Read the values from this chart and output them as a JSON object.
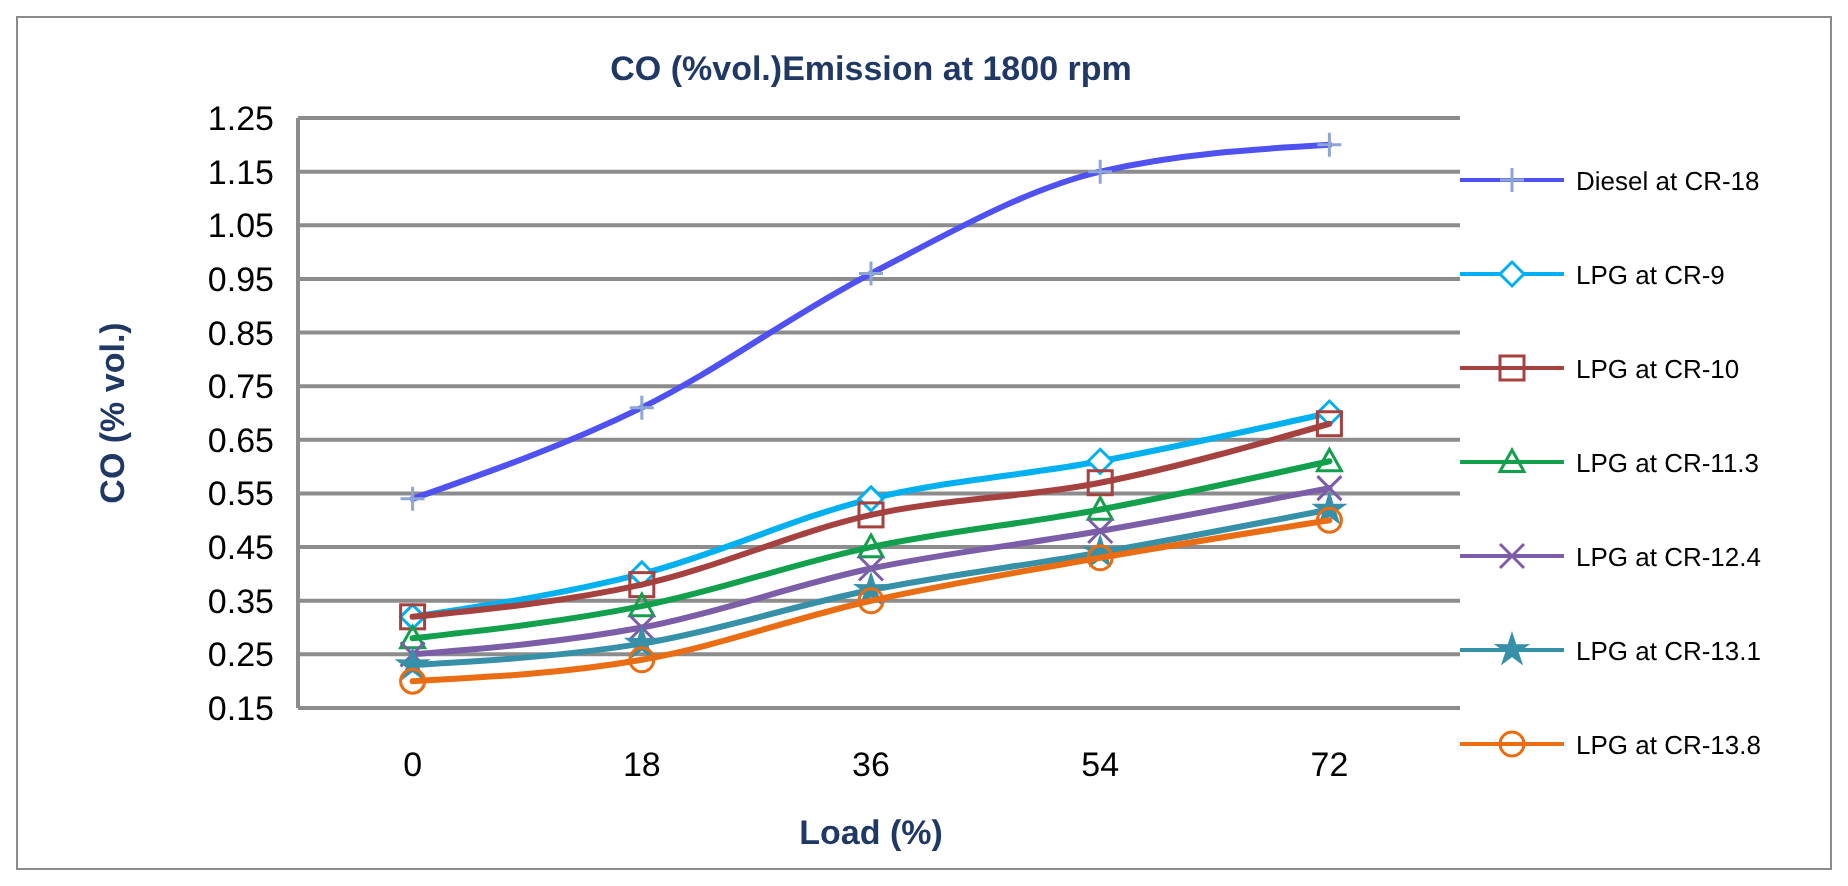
{
  "chart_data": {
    "type": "line",
    "title": "CO (%vol.)Emission  at  1800 rpm",
    "xlabel": "Load (%)",
    "ylabel": "CO (% vol.)",
    "categories": [
      "0",
      "18",
      "36",
      "54",
      "72"
    ],
    "ylim": [
      0.15,
      1.25
    ],
    "yticks": [
      0.15,
      0.25,
      0.35,
      0.45,
      0.55,
      0.65,
      0.75,
      0.85,
      0.95,
      1.05,
      1.15,
      1.25
    ],
    "grid": "y",
    "legend": "right",
    "series": [
      {
        "name": "Diesel at CR-18",
        "color": "#4f52f0",
        "marker": "plus",
        "values": [
          0.54,
          0.71,
          0.96,
          1.15,
          1.2
        ]
      },
      {
        "name": "LPG at CR-9",
        "color": "#00b0f0",
        "marker": "diamond",
        "values": [
          0.32,
          0.4,
          0.54,
          0.61,
          0.7
        ]
      },
      {
        "name": "LPG at CR-10",
        "color": "#a5413e",
        "marker": "square",
        "values": [
          0.32,
          0.38,
          0.51,
          0.57,
          0.68
        ]
      },
      {
        "name": "LPG at CR-11.3",
        "color": "#12a04c",
        "marker": "triangle",
        "values": [
          0.28,
          0.34,
          0.45,
          0.52,
          0.61
        ]
      },
      {
        "name": "LPG at CR-12.4",
        "color": "#7b5ea7",
        "marker": "cross",
        "values": [
          0.25,
          0.3,
          0.41,
          0.48,
          0.56
        ]
      },
      {
        "name": "LPG at CR-13.1",
        "color": "#3690a8",
        "marker": "star",
        "values": [
          0.23,
          0.27,
          0.37,
          0.44,
          0.52
        ]
      },
      {
        "name": "LPG at CR-13.8",
        "color": "#ea6c13",
        "marker": "circle",
        "values": [
          0.2,
          0.24,
          0.35,
          0.43,
          0.5
        ]
      }
    ]
  }
}
